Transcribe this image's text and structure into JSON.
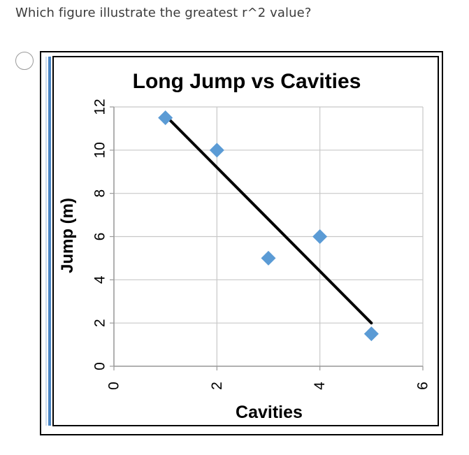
{
  "question": {
    "text": "Which figure illustrate the greatest r^2 value?"
  },
  "option": {
    "selected": false
  },
  "chart_data": {
    "type": "scatter",
    "title": "Long Jump vs Cavities",
    "xlabel": "Cavities",
    "ylabel": "Jump (m)",
    "xlim": [
      0,
      6
    ],
    "ylim": [
      0,
      12
    ],
    "x_ticks": [
      0,
      2,
      4,
      6
    ],
    "y_ticks": [
      0,
      2,
      4,
      6,
      8,
      10,
      12
    ],
    "grid": true,
    "series": [
      {
        "points": [
          {
            "x": 1,
            "y": 11.5
          },
          {
            "x": 2,
            "y": 10
          },
          {
            "x": 3,
            "y": 5
          },
          {
            "x": 4,
            "y": 6
          },
          {
            "x": 5,
            "y": 1.5
          }
        ],
        "marker": "diamond",
        "color": "#5b9bd5"
      }
    ],
    "trendline": {
      "x": [
        1,
        5
      ],
      "y": [
        11.6,
        2
      ],
      "color": "#000000"
    }
  }
}
